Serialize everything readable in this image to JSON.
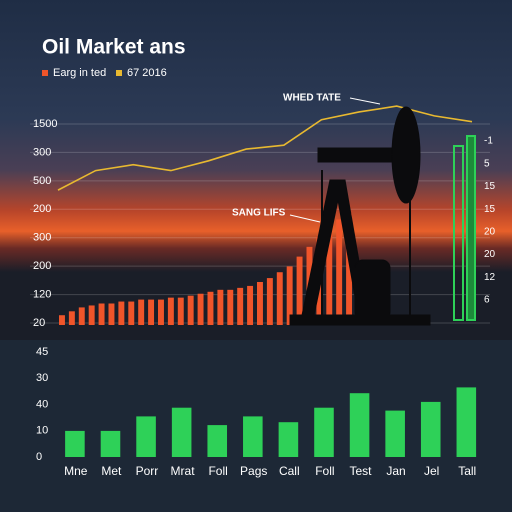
{
  "chart_data": [
    {
      "type": "bar_line",
      "title": "Oil Market ans",
      "left_axis_labels": [
        "1500",
        "300",
        "500",
        "200",
        "300",
        "200",
        "120",
        "20"
      ],
      "right_axis_labels": [
        "-1",
        "5",
        "15",
        "15",
        "20",
        "20",
        "12",
        "6"
      ],
      "annotations": [
        "WHED TATE",
        "SANG LIFS"
      ],
      "ylim": [
        0,
        110
      ],
      "series": [
        {
          "name": "Earg in ted",
          "color": "#f0552a",
          "kind": "bar",
          "values": [
            5,
            7,
            9,
            10,
            11,
            11,
            12,
            12,
            13,
            13,
            13,
            14,
            14,
            15,
            16,
            17,
            18,
            18,
            19,
            20,
            22,
            24,
            27,
            30,
            35,
            40,
            45,
            50,
            54,
            57
          ]
        },
        {
          "name": "67 2016",
          "color": "#e8b930",
          "kind": "line",
          "values": [
            69,
            79,
            82,
            79,
            84,
            90,
            92,
            105,
            109,
            112,
            107,
            104
          ]
        }
      ]
    },
    {
      "type": "bar",
      "categories": [
        "Mne",
        "Met",
        "Porr",
        "Mrat",
        "Foll",
        "Pags",
        "Call",
        "Foll",
        "Test",
        "Jan",
        "Jel",
        "Tall"
      ],
      "values": [
        9,
        9,
        14,
        17,
        11,
        14,
        12,
        17,
        22,
        16,
        19,
        24
      ],
      "color": "#2ed158",
      "y_axis_labels": [
        "45",
        "30",
        "40",
        "10",
        "0"
      ],
      "ylim": [
        0,
        40
      ]
    }
  ]
}
